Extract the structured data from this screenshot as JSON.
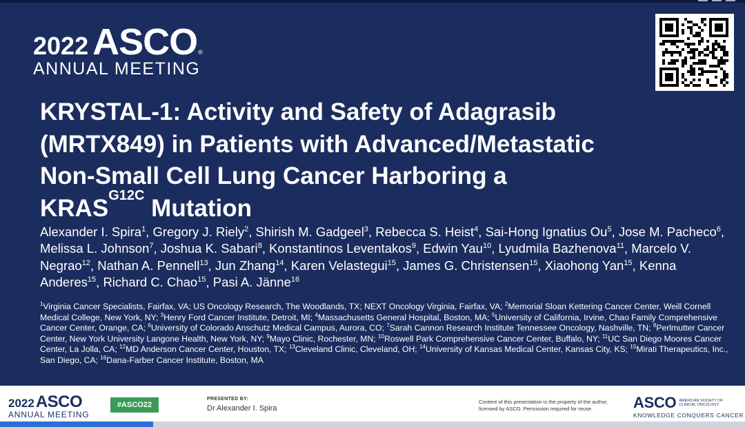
{
  "header": {
    "logo_year": "2022",
    "logo_name": "ASCO",
    "logo_reg": "®",
    "logo_subtitle": "ANNUAL MEETING"
  },
  "title": {
    "line1": "KRYSTAL-1: Activity and Safety of Adagrasib",
    "line2": "(MRTX849) in Patients with Advanced/Metastatic",
    "line3": "Non-Small Cell Lung Cancer Harboring a",
    "line4_pre": "KRAS",
    "line4_sup": "G12C",
    "line4_post": " Mutation"
  },
  "authors": [
    {
      "name": "Alexander I. Spira",
      "aff": "1"
    },
    {
      "name": "Gregory J. Riely",
      "aff": "2"
    },
    {
      "name": "Shirish M. Gadgeel",
      "aff": "3"
    },
    {
      "name": "Rebecca S. Heist",
      "aff": "4"
    },
    {
      "name": "Sai-Hong Ignatius Ou",
      "aff": "5"
    },
    {
      "name": "Jose M. Pacheco",
      "aff": "6"
    },
    {
      "name": "Melissa L. Johnson",
      "aff": "7"
    },
    {
      "name": "Joshua K. Sabari",
      "aff": "8"
    },
    {
      "name": "Konstantinos Leventakos",
      "aff": "9"
    },
    {
      "name": "Edwin Yau",
      "aff": "10"
    },
    {
      "name": "Lyudmila Bazhenova",
      "aff": "11"
    },
    {
      "name": "Marcelo V. Negrao",
      "aff": "12"
    },
    {
      "name": "Nathan A. Pennell",
      "aff": "13"
    },
    {
      "name": "Jun Zhang",
      "aff": "14"
    },
    {
      "name": "Karen Velastegui",
      "aff": "15"
    },
    {
      "name": "James G. Christensen",
      "aff": "15"
    },
    {
      "name": "Xiaohong Yan",
      "aff": "15"
    },
    {
      "name": "Kenna Anderes",
      "aff": "15"
    },
    {
      "name": "Richard C. Chao",
      "aff": "15"
    },
    {
      "name": "Pasi A. Jänne",
      "aff": "16"
    }
  ],
  "affiliations": [
    {
      "n": "1",
      "text": "Virginia Cancer Specialists, Fairfax, VA; US Oncology Research, The Woodlands, TX; NEXT Oncology Virginia, Fairfax, VA; "
    },
    {
      "n": "2",
      "text": "Memorial Sloan Kettering Cancer Center, Weill Cornell Medical College, New York, NY; "
    },
    {
      "n": "3",
      "text": "Henry Ford Cancer Institute, Detroit, MI; "
    },
    {
      "n": "4",
      "text": "Massachusetts General Hospital, Boston, MA; "
    },
    {
      "n": "5",
      "text": "University of California, Irvine, Chao Family Comprehensive Cancer Center, Orange, CA; "
    },
    {
      "n": "6",
      "text": "University of Colorado Anschutz Medical Campus, Aurora, CO; "
    },
    {
      "n": "7",
      "text": "Sarah Cannon Research Institute Tennessee Oncology, Nashville, TN; "
    },
    {
      "n": "8",
      "text": "Perlmutter Cancer Center, New York University Langone Health, New York, NY; "
    },
    {
      "n": "9",
      "text": "Mayo Clinic, Rochester, MN; "
    },
    {
      "n": "10",
      "text": "Roswell Park Comprehensive Cancer Center, Buffalo, NY; "
    },
    {
      "n": "11",
      "text": "UC San Diego Moores Cancer Center, La Jolla, CA; "
    },
    {
      "n": "12",
      "text": "MD Anderson Cancer Center, Houston, TX; "
    },
    {
      "n": "13",
      "text": "Cleveland Clinic, Cleveland, OH; "
    },
    {
      "n": "14",
      "text": "University of Kansas Medical Center, Kansas City, KS; "
    },
    {
      "n": "15",
      "text": "Mirati Therapeutics, Inc., San Diego, CA; "
    },
    {
      "n": "16",
      "text": "Dana-Farber Cancer Institute, Boston, MA"
    }
  ],
  "footer": {
    "logo_year": "2022",
    "logo_name": "ASCO",
    "logo_subtitle": "ANNUAL MEETING",
    "hashtag": "#ASCO22",
    "presented_label": "PRESENTED BY:",
    "presenter": "Dr Alexander I. Spira",
    "notice": "Content of this presentation is the property of the author, licensed by ASCO. Permission required for reuse.",
    "asco_word": "ASCO",
    "asco_society": "AMERICAN SOCIETY OF CLINICAL ONCOLOGY",
    "asco_tagline": "KNOWLEDGE CONQUERS CANCER"
  },
  "colors": {
    "slide_bg": "#1b2d5e",
    "hashtag_bg": "#3a9a57",
    "footer_accent": "#2b6fd6"
  },
  "icons": {
    "qr": "qr-code-icon"
  }
}
